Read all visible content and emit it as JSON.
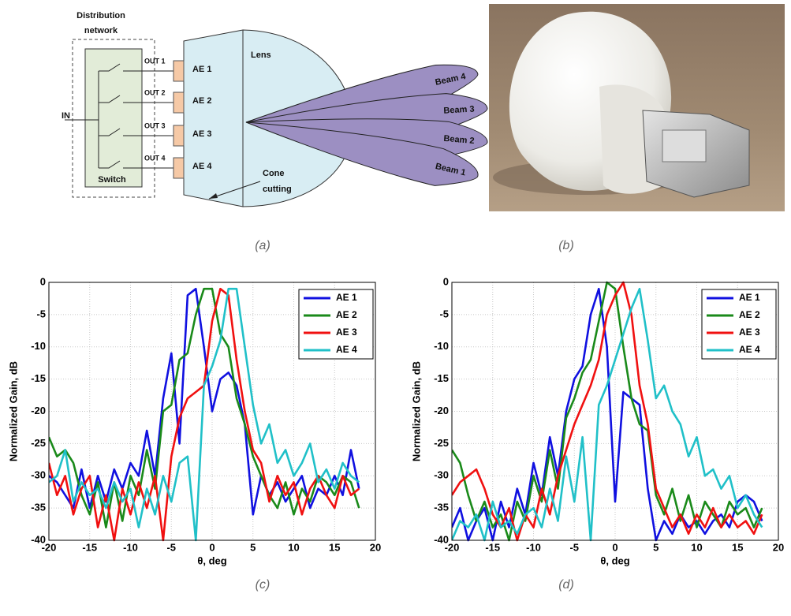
{
  "diagram": {
    "network_title": [
      "Distribution",
      "network"
    ],
    "input": "IN",
    "switch": "Switch",
    "outputs": [
      "OUT 1",
      "OUT 2",
      "OUT 3",
      "OUT 4"
    ],
    "elements": [
      "AE 1",
      "AE 2",
      "AE 3",
      "AE 4"
    ],
    "lens": "Lens",
    "cone": [
      "Cone",
      "cutting"
    ],
    "beams": [
      "Beam 1",
      "Beam 2",
      "Beam 3",
      "Beam 4"
    ]
  },
  "captions": [
    "(a)",
    "(b)"
  ],
  "chart_data": [
    {
      "type": "line",
      "caption": "(c)",
      "xlabel": "θ, deg",
      "ylabel": "Normalized Gain, dB",
      "xlim": [
        -20,
        20
      ],
      "ylim": [
        -40,
        0
      ],
      "xticks": [
        -20,
        -15,
        -10,
        -5,
        0,
        5,
        10,
        15,
        20
      ],
      "yticks": [
        0,
        -5,
        -10,
        -15,
        -20,
        -25,
        -30,
        -35,
        -40
      ],
      "grid": true,
      "legend": "upper right",
      "x": [
        -20,
        -19,
        -18,
        -17,
        -16,
        -15,
        -14,
        -13,
        -12,
        -11,
        -10,
        -9,
        -8,
        -7,
        -6,
        -5,
        -4,
        -3,
        -2,
        -1,
        0,
        1,
        2,
        3,
        4,
        5,
        6,
        7,
        8,
        9,
        10,
        11,
        12,
        13,
        14,
        15,
        16,
        17,
        18
      ],
      "series": [
        {
          "name": "AE 1",
          "color": "#1010e0",
          "values": [
            -30,
            -31,
            -33,
            -35,
            -29,
            -35,
            -30,
            -34,
            -29,
            -32,
            -28,
            -30,
            -23,
            -30,
            -18,
            -11,
            -25,
            -2,
            -1,
            -10,
            -20,
            -15,
            -14,
            -16,
            -22,
            -36,
            -30,
            -33,
            -31,
            -34,
            -32,
            -30,
            -35,
            -32,
            -33,
            -30,
            -33,
            -26,
            -32
          ]
        },
        {
          "name": "AE 2",
          "color": "#1a8a1a",
          "values": [
            -24,
            -27,
            -26,
            -28,
            -33,
            -36,
            -31,
            -38,
            -31,
            -37,
            -30,
            -33,
            -26,
            -32,
            -20,
            -19,
            -12,
            -11,
            -5,
            -1,
            -1,
            -8,
            -10,
            -18,
            -22,
            -27,
            -30,
            -33,
            -35,
            -31,
            -36,
            -32,
            -34,
            -30,
            -31,
            -33,
            -30,
            -31,
            -35
          ]
        },
        {
          "name": "AE 3",
          "color": "#f01010",
          "values": [
            -28,
            -33,
            -30,
            -36,
            -32,
            -30,
            -38,
            -33,
            -40,
            -32,
            -36,
            -31,
            -35,
            -30,
            -40,
            -27,
            -21,
            -18,
            -17,
            -16,
            -6,
            -1,
            -2,
            -12,
            -20,
            -26,
            -28,
            -34,
            -30,
            -33,
            -31,
            -36,
            -32,
            -30,
            -33,
            -35,
            -30,
            -33,
            -32
          ]
        },
        {
          "name": "AE 4",
          "color": "#20c0c8",
          "values": [
            -31,
            -30,
            -26,
            -34,
            -31,
            -33,
            -32,
            -35,
            -31,
            -34,
            -32,
            -38,
            -32,
            -36,
            -30,
            -34,
            -28,
            -27,
            -40,
            -16,
            -13,
            -9,
            -1,
            -1,
            -10,
            -19,
            -25,
            -22,
            -28,
            -26,
            -30,
            -28,
            -25,
            -31,
            -29,
            -32,
            -28,
            -30,
            -31
          ]
        }
      ]
    },
    {
      "type": "line",
      "caption": "(d)",
      "xlabel": "θ, deg",
      "ylabel": "Normalized Gain, dB",
      "xlim": [
        -20,
        20
      ],
      "ylim": [
        -40,
        0
      ],
      "xticks": [
        -20,
        -15,
        -10,
        -5,
        0,
        5,
        10,
        15,
        20
      ],
      "yticks": [
        0,
        -5,
        -10,
        -15,
        -20,
        -25,
        -30,
        -35,
        -40
      ],
      "grid": true,
      "legend": "upper right",
      "x": [
        -20,
        -19,
        -18,
        -17,
        -16,
        -15,
        -14,
        -13,
        -12,
        -11,
        -10,
        -9,
        -8,
        -7,
        -6,
        -5,
        -4,
        -3,
        -2,
        -1,
        0,
        1,
        2,
        3,
        4,
        5,
        6,
        7,
        8,
        9,
        10,
        11,
        12,
        13,
        14,
        15,
        16,
        17,
        18
      ],
      "series": [
        {
          "name": "AE 1",
          "color": "#1010e0",
          "values": [
            -38,
            -35,
            -40,
            -37,
            -35,
            -40,
            -34,
            -38,
            -32,
            -36,
            -28,
            -33,
            -24,
            -30,
            -20,
            -15,
            -13,
            -5,
            -1,
            -10,
            -34,
            -17,
            -18,
            -19,
            -32,
            -40,
            -37,
            -39,
            -36,
            -38,
            -37,
            -39,
            -37,
            -36,
            -38,
            -34,
            -33,
            -34,
            -37
          ]
        },
        {
          "name": "AE 2",
          "color": "#1a8a1a",
          "values": [
            -26,
            -28,
            -33,
            -37,
            -34,
            -38,
            -36,
            -40,
            -34,
            -37,
            -30,
            -34,
            -26,
            -32,
            -21,
            -18,
            -14,
            -12,
            -6,
            0,
            -1,
            -10,
            -18,
            -22,
            -23,
            -33,
            -36,
            -32,
            -37,
            -33,
            -38,
            -34,
            -36,
            -38,
            -34,
            -36,
            -35,
            -38,
            -35
          ]
        },
        {
          "name": "AE 3",
          "color": "#f01010",
          "values": [
            -33,
            -31,
            -30,
            -29,
            -32,
            -36,
            -38,
            -35,
            -40,
            -36,
            -38,
            -32,
            -36,
            -30,
            -26,
            -22,
            -19,
            -16,
            -12,
            -5,
            -2,
            0,
            -5,
            -16,
            -22,
            -32,
            -35,
            -38,
            -36,
            -39,
            -36,
            -38,
            -35,
            -38,
            -36,
            -38,
            -37,
            -39,
            -36
          ]
        },
        {
          "name": "AE 4",
          "color": "#20c0c8",
          "values": [
            -40,
            -37,
            -38,
            -36,
            -40,
            -34,
            -38,
            -37,
            -39,
            -36,
            -35,
            -38,
            -32,
            -37,
            -27,
            -34,
            -24,
            -40,
            -19,
            -16,
            -12,
            -8,
            -4,
            -1,
            -9,
            -18,
            -16,
            -20,
            -22,
            -27,
            -24,
            -30,
            -29,
            -32,
            -30,
            -35,
            -33,
            -36,
            -38
          ]
        }
      ]
    }
  ]
}
